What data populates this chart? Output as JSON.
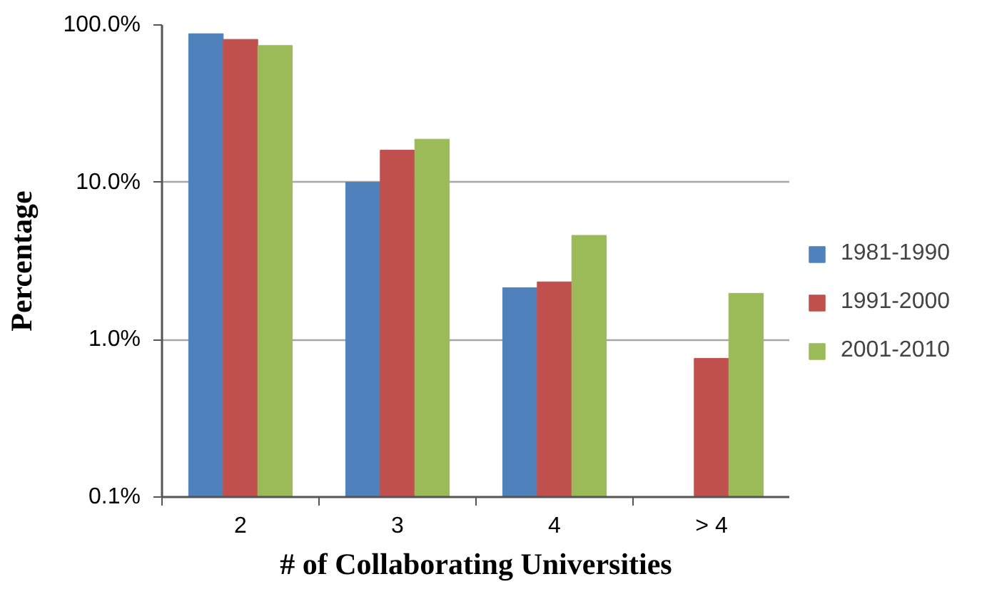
{
  "chart_data": {
    "type": "bar",
    "xlabel": "# of Collaborating Universities",
    "ylabel": "Percentage",
    "categories": [
      "2",
      "3",
      "4",
      "> 4"
    ],
    "series": [
      {
        "name": "1981-1990",
        "color": "#4f81bd",
        "values": [
          88,
          10,
          2.14,
          null
        ]
      },
      {
        "name": "1991-2000",
        "color": "#c0504d",
        "values": [
          81,
          16,
          2.33,
          0.76
        ]
      },
      {
        "name": "2001-2010",
        "color": "#9bbb59",
        "values": [
          74,
          18.8,
          4.6,
          1.97
        ]
      }
    ],
    "log": true,
    "ylim": [
      0.1,
      100
    ],
    "yticks": [
      {
        "value": 0.1,
        "label": "0.1%"
      },
      {
        "value": 1,
        "label": "1.0%"
      },
      {
        "value": 10,
        "label": "10.0%"
      },
      {
        "value": 100,
        "label": "100.0%"
      }
    ],
    "grid": "y",
    "legend": "right"
  }
}
